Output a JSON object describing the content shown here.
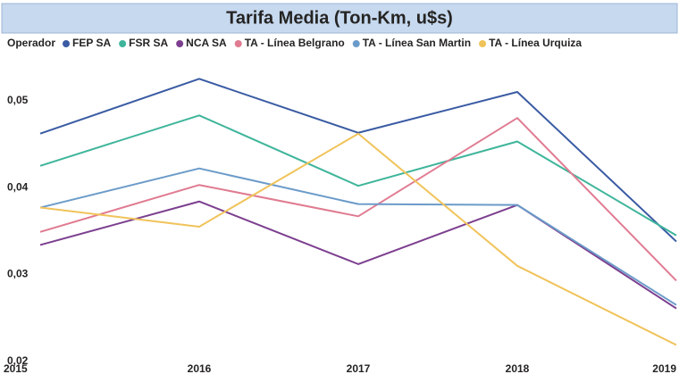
{
  "chart_data": {
    "type": "line",
    "title": "Tarifa Media (Ton-Km, u$s)",
    "legend_title": "Operador",
    "legend_position": "top-left",
    "grid": false,
    "x": [
      2015,
      2016,
      2017,
      2018,
      2019
    ],
    "xlim": [
      2015,
      2019
    ],
    "xticks": [
      2015,
      2016,
      2017,
      2018,
      2019
    ],
    "ylim": [
      0.02,
      0.055
    ],
    "yticks": [
      {
        "value": 0.02,
        "label": "0,02"
      },
      {
        "value": 0.03,
        "label": "0,03"
      },
      {
        "value": 0.04,
        "label": "0,04"
      },
      {
        "value": 0.05,
        "label": "0,05"
      }
    ],
    "series": [
      {
        "name": "FEP SA",
        "color": "#3a5ba3",
        "values": [
          0.0462,
          0.0525,
          0.0463,
          0.051,
          0.0338
        ]
      },
      {
        "name": "FSR SA",
        "color": "#3fb59b",
        "values": [
          0.0425,
          0.0483,
          0.0402,
          0.0453,
          0.0345
        ]
      },
      {
        "name": "NCA SA",
        "color": "#7c3f8f",
        "values": [
          0.0334,
          0.0384,
          0.0312,
          0.038,
          0.0261
        ]
      },
      {
        "name": "TA - Línea Belgrano",
        "color": "#e07b91",
        "values": [
          0.0349,
          0.0403,
          0.0367,
          0.048,
          0.0293
        ]
      },
      {
        "name": "TA - Línea San Martin",
        "color": "#6b9bc9",
        "values": [
          0.0377,
          0.0422,
          0.0381,
          0.038,
          0.0265
        ]
      },
      {
        "name": "TA - Línea Urquiza",
        "color": "#f0c35a",
        "values": [
          0.0377,
          0.0355,
          0.0462,
          0.031,
          0.0219
        ]
      }
    ]
  }
}
